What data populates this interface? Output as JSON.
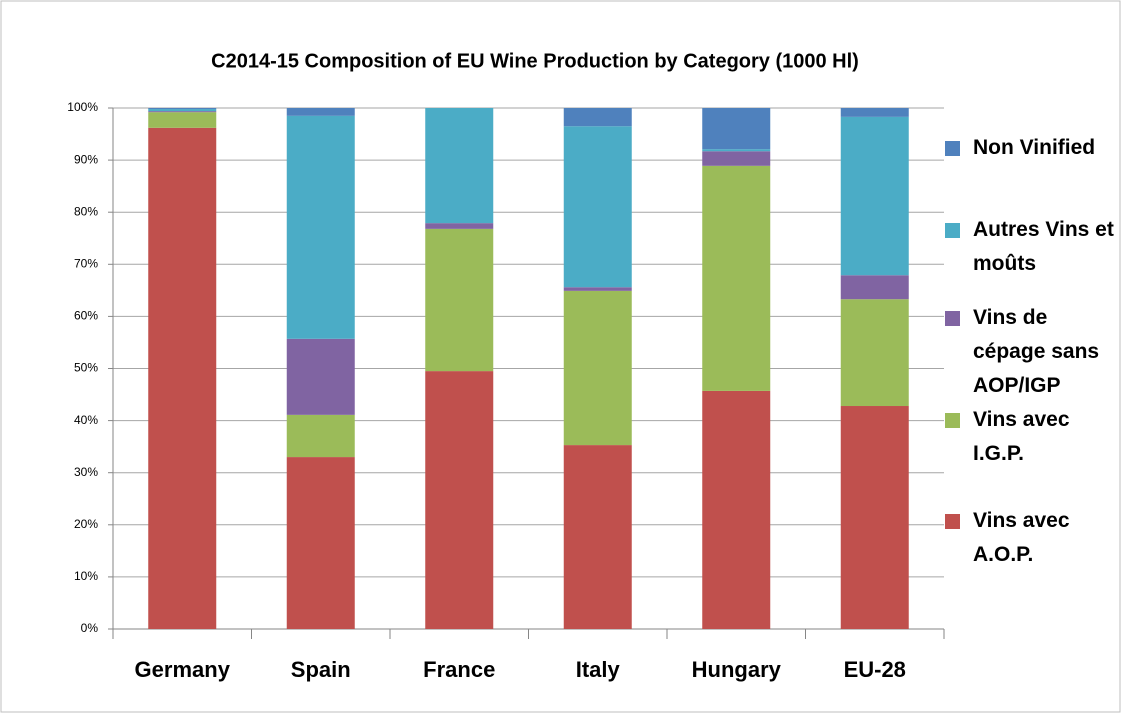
{
  "chart_data": {
    "type": "stacked_bar",
    "title": "C2014-15 Composition of EU Wine Production by Category (1000 Hl)",
    "categories": [
      "Germany",
      "Spain",
      "France",
      "Italy",
      "Hungary",
      "EU-28"
    ],
    "series": [
      {
        "name": "Vins avec A.O.P.",
        "color": "#c0504d",
        "values": [
          96.2,
          33.0,
          49.5,
          35.3,
          45.7,
          42.8
        ]
      },
      {
        "name": "Vins avec I.G.P.",
        "color": "#9bbb59",
        "values": [
          3.0,
          8.1,
          27.3,
          29.6,
          43.2,
          20.5
        ]
      },
      {
        "name": "Vins de cépage sans AOP/IGP",
        "color": "#8064a2",
        "values": [
          0.2,
          14.6,
          1.1,
          0.7,
          2.8,
          4.6
        ]
      },
      {
        "name": "Autres Vins et moûts",
        "color": "#4bacc6",
        "values": [
          0.4,
          42.8,
          22.1,
          30.9,
          0.4,
          30.4
        ]
      },
      {
        "name": "Non Vinified",
        "color": "#4f81bd",
        "values": [
          0.2,
          1.5,
          0,
          3.5,
          7.9,
          1.7
        ]
      }
    ],
    "ylim": [
      0,
      100
    ],
    "yticks": [
      {
        "value": 0,
        "label": "0%"
      },
      {
        "value": 10,
        "label": "10%"
      },
      {
        "value": 20,
        "label": "20%"
      },
      {
        "value": 30,
        "label": "30%"
      },
      {
        "value": 40,
        "label": "40%"
      },
      {
        "value": 50,
        "label": "50%"
      },
      {
        "value": 60,
        "label": "60%"
      },
      {
        "value": 70,
        "label": "70%"
      },
      {
        "value": 80,
        "label": "80%"
      },
      {
        "value": 90,
        "label": "90%"
      },
      {
        "value": 100,
        "label": "100%"
      }
    ],
    "grid": true,
    "legend": "right"
  }
}
